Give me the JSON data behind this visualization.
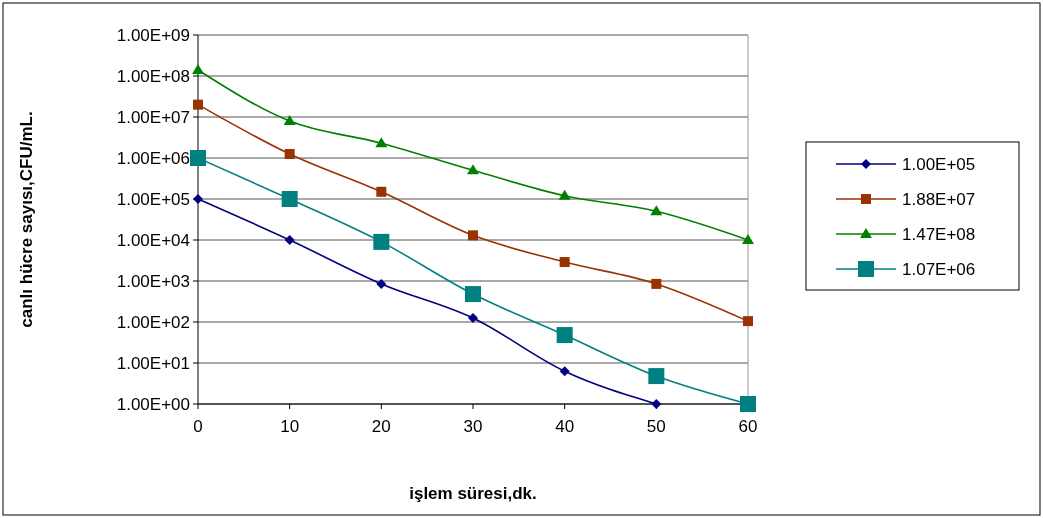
{
  "chart_data": {
    "type": "line",
    "xlabel": "işlem süresi,dk.",
    "ylabel": "canlı hücre sayısı,CFU/mL.",
    "x": [
      0,
      10,
      20,
      30,
      40,
      50,
      60
    ],
    "xlim": [
      0,
      60
    ],
    "xticks": [
      0,
      10,
      20,
      30,
      40,
      50,
      60
    ],
    "log": true,
    "ylim": [
      1,
      1000000000
    ],
    "yticks": [
      {
        "value": 1,
        "label": "1.00E+00"
      },
      {
        "value": 10,
        "label": "1.00E+01"
      },
      {
        "value": 100,
        "label": "1.00E+02"
      },
      {
        "value": 1000,
        "label": "1.00E+03"
      },
      {
        "value": 10000,
        "label": "1.00E+04"
      },
      {
        "value": 100000,
        "label": "1.00E+05"
      },
      {
        "value": 1000000,
        "label": "1.00E+06"
      },
      {
        "value": 10000000,
        "label": "1.00E+07"
      },
      {
        "value": 100000000,
        "label": "1.00E+08"
      },
      {
        "value": 1000000000,
        "label": "1.00E+09"
      }
    ],
    "grid": "y",
    "legend": "right",
    "series": [
      {
        "name": "1.00E+05",
        "color": "#000080",
        "marker": "diamond",
        "values": [
          100000,
          10000,
          850,
          125,
          6.3,
          1,
          null
        ]
      },
      {
        "name": "1.88E+07",
        "color": "#993300",
        "marker": "square",
        "values": [
          20000000,
          1250000,
          150000,
          13000,
          2900,
          850,
          105
        ]
      },
      {
        "name": "1.47E+08",
        "color": "#008000",
        "marker": "triangle",
        "values": [
          140000000,
          8000000,
          2300000,
          500000,
          120000,
          50000,
          10000
        ]
      },
      {
        "name": "1.07E+06",
        "color": "#008080",
        "marker": "square",
        "values": [
          1000000,
          100000,
          9000,
          480,
          48,
          4.8,
          1
        ]
      }
    ]
  }
}
